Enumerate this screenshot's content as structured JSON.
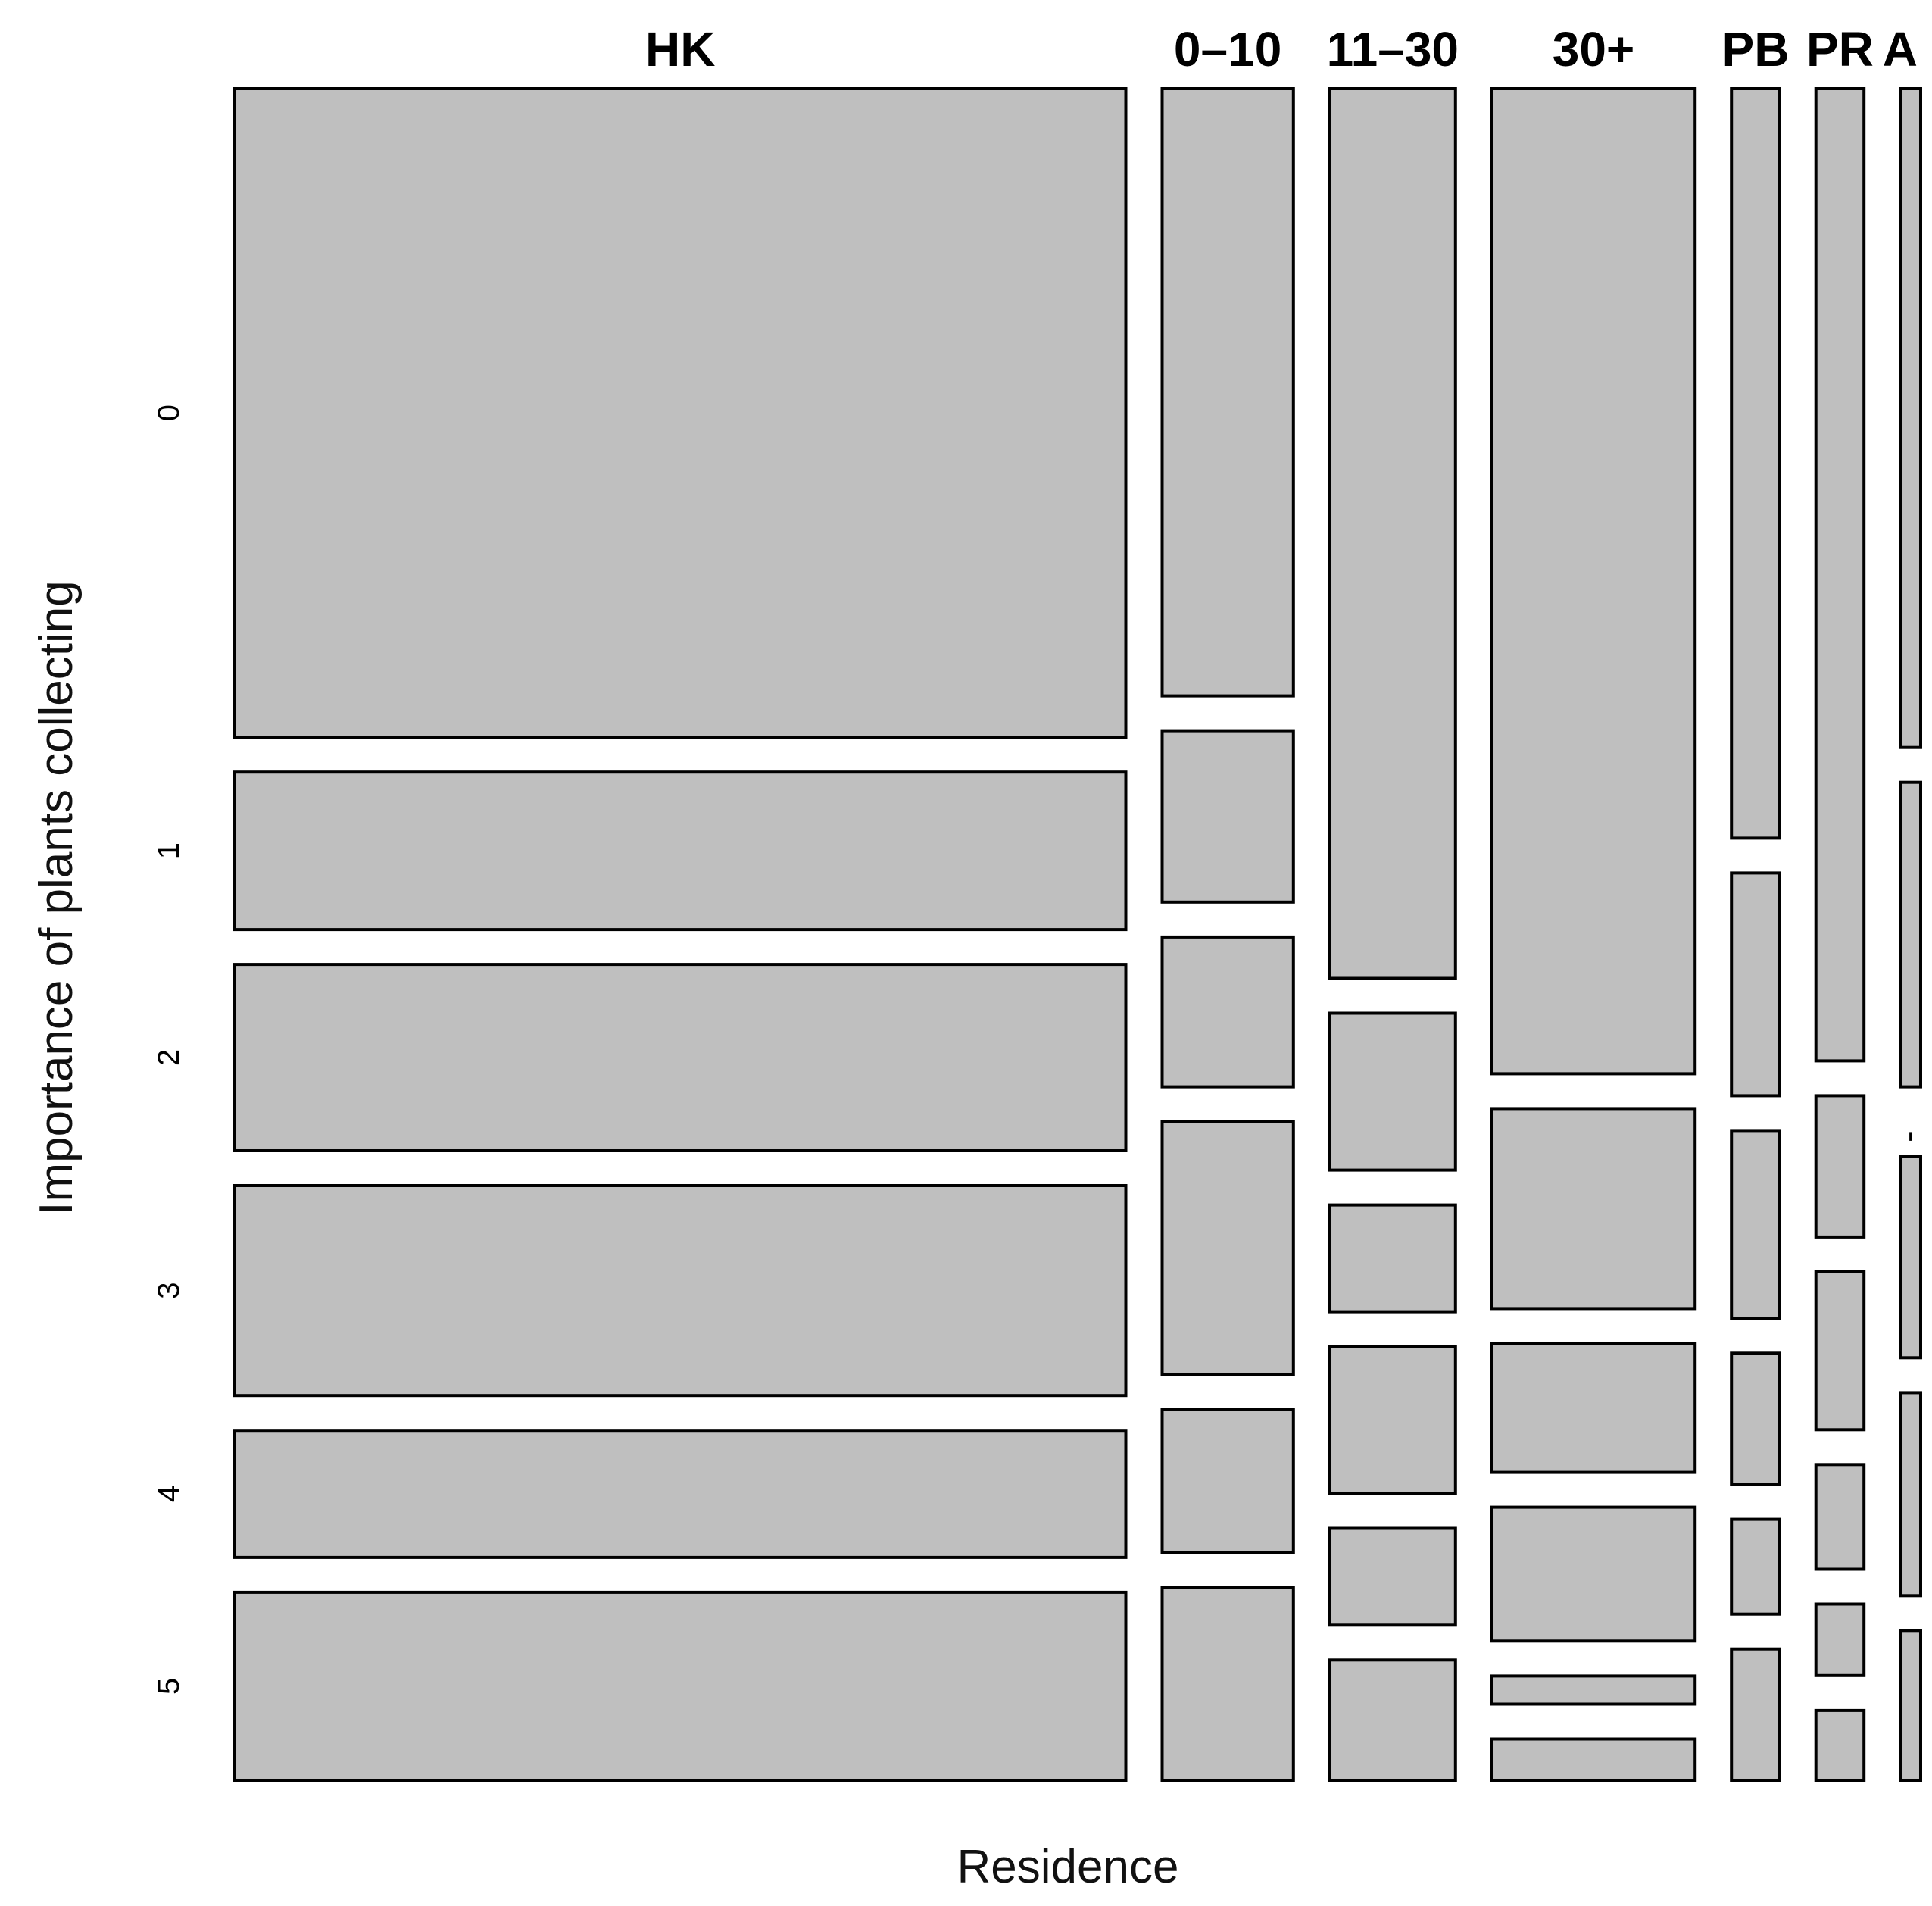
{
  "chart_data": {
    "type": "mosaic",
    "title": "",
    "xlabel": "Residence",
    "ylabel": "Importance of plants collecting",
    "categories": [
      "HK",
      "0–10",
      "11–30",
      "30+",
      "PB",
      "PR",
      "A"
    ],
    "levels": [
      "0",
      "1",
      "2",
      "3",
      "4",
      "5"
    ],
    "column_widths": [
      0.482,
      0.071,
      0.068,
      0.11,
      0.026,
      0.026,
      0.011
    ],
    "series": [
      {
        "name": "HK",
        "proportions": [
          0.383,
          0.093,
          0.11,
          0.124,
          0.075,
          0.111
        ]
      },
      {
        "name": "0–10",
        "proportions": [
          0.365,
          0.103,
          0.09,
          0.152,
          0.086,
          0.116
        ]
      },
      {
        "name": "11–30",
        "proportions": [
          0.533,
          0.094,
          0.064,
          0.088,
          0.058,
          0.072
        ]
      },
      {
        "name": "30+",
        "proportions": [
          0.596,
          0.121,
          0.078,
          0.081,
          0.017,
          0.025
        ]
      },
      {
        "name": "PB",
        "proportions": [
          0.451,
          0.134,
          0.113,
          0.079,
          0.057,
          0.079
        ]
      },
      {
        "name": "PR",
        "proportions": [
          0.585,
          0.085,
          0.095,
          0.063,
          0.043,
          0.042
        ]
      },
      {
        "name": "A",
        "proportions": [
          0.396,
          0.183,
          0.0,
          0.121,
          0.122,
          0.09
        ]
      }
    ]
  }
}
